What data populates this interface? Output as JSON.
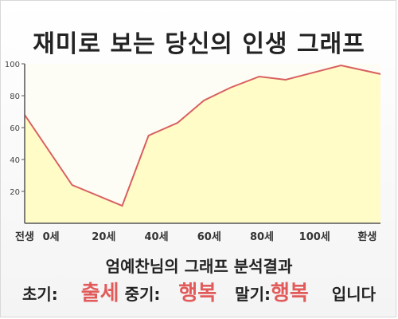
{
  "title": "재미로 보는 당신의 인생 그래프",
  "colors": {
    "line": "#d95f5f",
    "fill": "#fffcc8",
    "axis": "#555555",
    "grid": "#e6e6e6",
    "highlight": "#e25b5b"
  },
  "chart_data": {
    "type": "area",
    "title": "재미로 보는 당신의 인생 그래프",
    "xlabel": "",
    "ylabel": "",
    "ylim": [
      0,
      100
    ],
    "yticks": [
      20,
      40,
      60,
      80,
      100
    ],
    "x_tick_labels": [
      {
        "x": 0,
        "label": "전생"
      },
      {
        "x": 10,
        "label": "0세"
      },
      {
        "x": 30,
        "label": "20세"
      },
      {
        "x": 50,
        "label": "40세"
      },
      {
        "x": 70,
        "label": "60세"
      },
      {
        "x": 90,
        "label": "80세"
      },
      {
        "x": 110,
        "label": "100세"
      },
      {
        "x": 130,
        "label": "환생"
      }
    ],
    "xlim": [
      0,
      135
    ],
    "grid": false,
    "points": [
      {
        "x": 0,
        "y": 68
      },
      {
        "x": 18,
        "y": 24
      },
      {
        "x": 37,
        "y": 11
      },
      {
        "x": 47,
        "y": 55
      },
      {
        "x": 58,
        "y": 63
      },
      {
        "x": 68,
        "y": 77
      },
      {
        "x": 78,
        "y": 85
      },
      {
        "x": 89,
        "y": 92
      },
      {
        "x": 99,
        "y": 90
      },
      {
        "x": 120,
        "y": 99
      },
      {
        "x": 145,
        "y": 90
      }
    ]
  },
  "result": {
    "heading": "엄예찬님의 그래프 분석결과",
    "early_label": "초기:",
    "early_value": "출세",
    "middle_label": "중기:",
    "middle_value": "행복",
    "late_label": "말기:",
    "late_value": "행복",
    "suffix": "입니다"
  }
}
